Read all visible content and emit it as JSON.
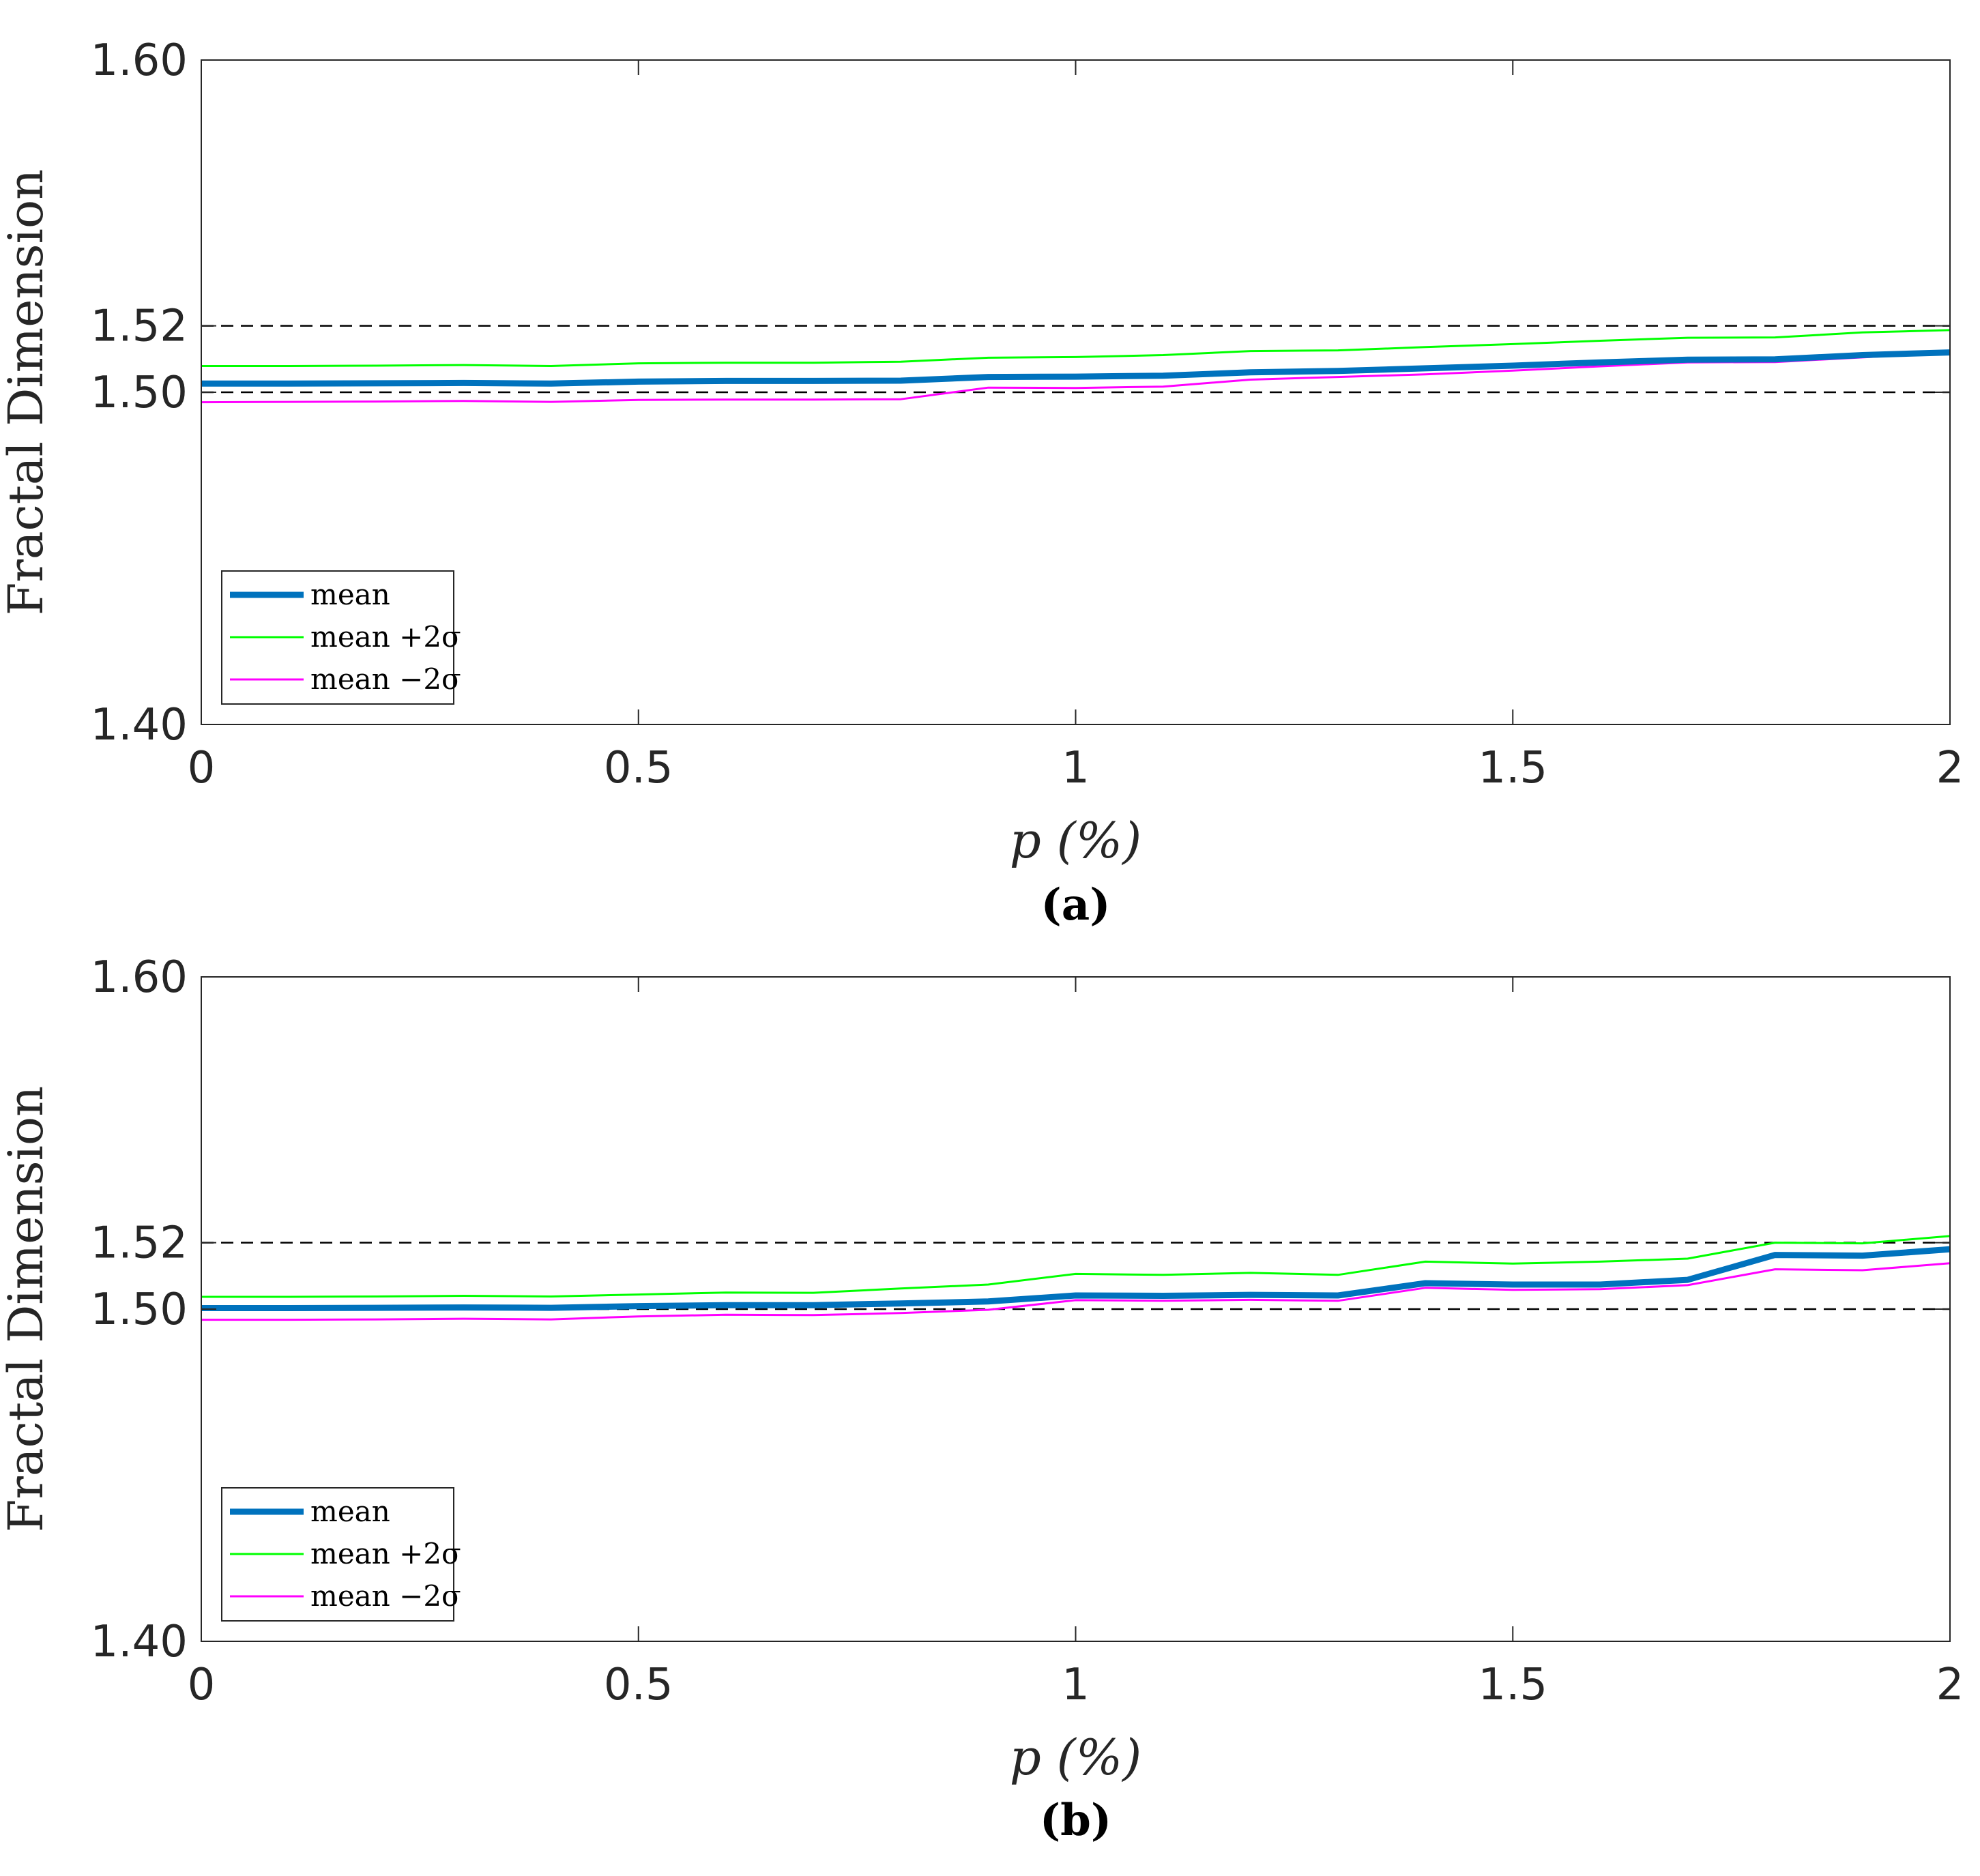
{
  "chart_data": [
    {
      "type": "line",
      "panel_label": "(a)",
      "xlabel": "p (%)",
      "ylabel": "Fractal Dimension",
      "xlim": [
        0,
        2
      ],
      "ylim": [
        1.4,
        1.6
      ],
      "xticks": [
        "0",
        "0.5",
        "1",
        "1.5",
        "2"
      ],
      "xtick_values": [
        0,
        0.5,
        1,
        1.5,
        2
      ],
      "yticks": [
        "1.40",
        "1.50",
        "1.52",
        "1.60"
      ],
      "ytick_values": [
        1.4,
        1.5,
        1.52,
        1.6
      ],
      "reference_lines": [
        1.5,
        1.52
      ],
      "legend_position": "bottom-left",
      "x": [
        0,
        0.1,
        0.2,
        0.3,
        0.4,
        0.5,
        0.6,
        0.7,
        0.8,
        0.9,
        1.0,
        1.1,
        1.2,
        1.3,
        1.4,
        1.5,
        1.6,
        1.7,
        1.8,
        1.9,
        2.0
      ],
      "series": [
        {
          "name": "mean",
          "color": "#0072BD",
          "values": [
            1.5026,
            1.5026,
            1.5027,
            1.5028,
            1.5026,
            1.5032,
            1.5034,
            1.5034,
            1.5035,
            1.5046,
            1.5047,
            1.505,
            1.506,
            1.5064,
            1.5072,
            1.508,
            1.509,
            1.5098,
            1.5099,
            1.5112,
            1.512
          ]
        },
        {
          "name": "mean +2σ",
          "color": "#00FF00",
          "values": [
            1.5079,
            1.5079,
            1.508,
            1.5082,
            1.5079,
            1.5087,
            1.5089,
            1.5089,
            1.5092,
            1.5104,
            1.5106,
            1.5112,
            1.5124,
            1.5126,
            1.5136,
            1.5145,
            1.5155,
            1.5164,
            1.5165,
            1.518,
            1.5187
          ]
        },
        {
          "name": "mean −2σ",
          "color": "#FF00FF",
          "values": [
            1.497,
            1.4971,
            1.4972,
            1.4974,
            1.4971,
            1.4977,
            1.4978,
            1.4978,
            1.4979,
            1.5014,
            1.5013,
            1.5017,
            1.5038,
            1.5046,
            1.5054,
            1.5065,
            1.5078,
            1.509,
            1.5091,
            1.5105,
            1.512
          ]
        }
      ]
    },
    {
      "type": "line",
      "panel_label": "(b)",
      "xlabel": "p (%)",
      "ylabel": "Fractal Dimension",
      "xlim": [
        0,
        2
      ],
      "ylim": [
        1.4,
        1.6
      ],
      "xticks": [
        "0",
        "0.5",
        "1",
        "1.5",
        "2"
      ],
      "xtick_values": [
        0,
        0.5,
        1,
        1.5,
        2
      ],
      "yticks": [
        "1.40",
        "1.50",
        "1.52",
        "1.60"
      ],
      "ytick_values": [
        1.4,
        1.5,
        1.52,
        1.6
      ],
      "reference_lines": [
        1.5,
        1.52
      ],
      "legend_position": "bottom-left",
      "x": [
        0,
        0.1,
        0.2,
        0.3,
        0.4,
        0.5,
        0.6,
        0.7,
        0.8,
        0.9,
        1.0,
        1.1,
        1.2,
        1.3,
        1.4,
        1.5,
        1.6,
        1.7,
        1.8,
        1.9,
        2.0
      ],
      "series": [
        {
          "name": "mean",
          "color": "#0072BD",
          "values": [
            1.5003,
            1.5003,
            1.5004,
            1.5005,
            1.5004,
            1.5009,
            1.5012,
            1.5012,
            1.5017,
            1.5023,
            1.5041,
            1.504,
            1.5043,
            1.5041,
            1.5078,
            1.5074,
            1.5074,
            1.5088,
            1.5163,
            1.5161,
            1.518
          ]
        },
        {
          "name": "mean +2σ",
          "color": "#00FF00",
          "values": [
            1.5037,
            1.5037,
            1.5038,
            1.504,
            1.5038,
            1.5044,
            1.505,
            1.5049,
            1.5062,
            1.5074,
            1.5106,
            1.5103,
            1.5109,
            1.5103,
            1.5143,
            1.5137,
            1.5143,
            1.5152,
            1.52,
            1.5198,
            1.522
          ]
        },
        {
          "name": "mean −2σ",
          "color": "#FF00FF",
          "values": [
            1.4968,
            1.4968,
            1.4969,
            1.4971,
            1.4969,
            1.4978,
            1.4983,
            1.4982,
            1.4988,
            1.4998,
            1.5027,
            1.5025,
            1.5028,
            1.5025,
            1.5064,
            1.5058,
            1.506,
            1.5072,
            1.512,
            1.5117,
            1.5138
          ]
        }
      ]
    }
  ]
}
